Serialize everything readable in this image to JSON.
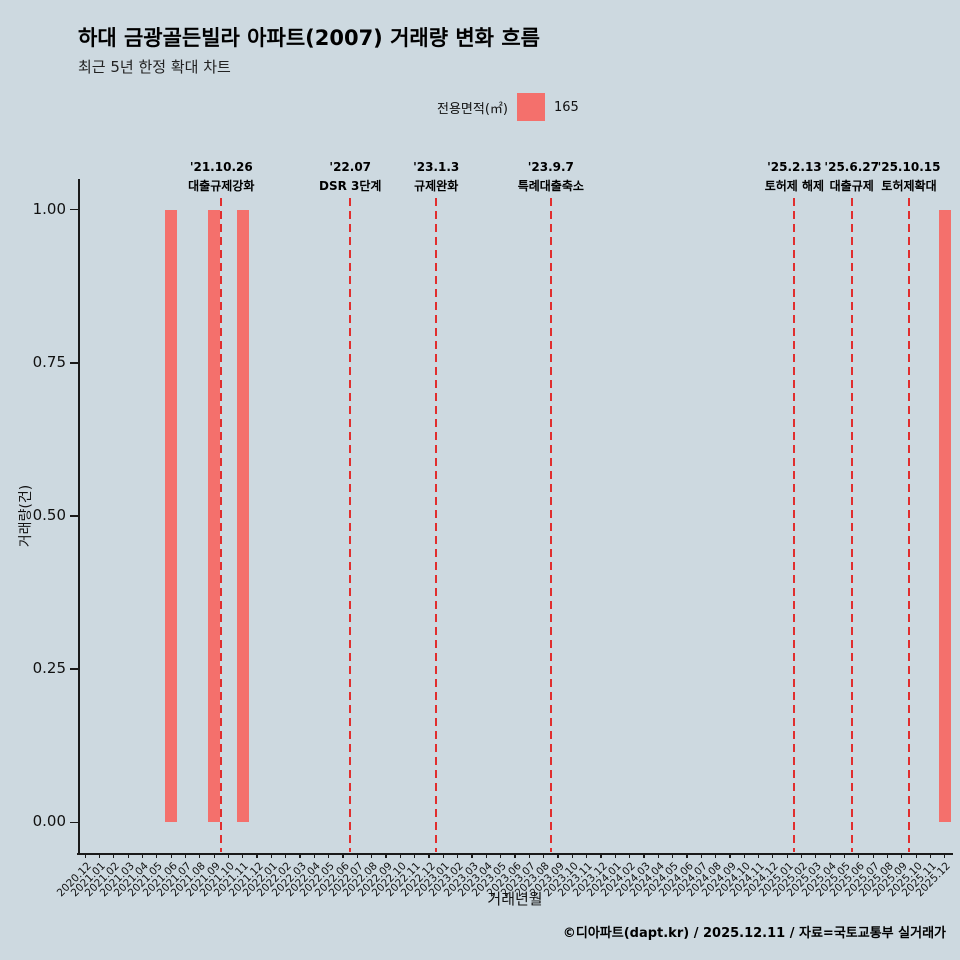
{
  "header": {
    "title": "하대 금광골든빌라 아파트(2007) 거래량 변화 흐름",
    "subtitle": "최근 5년 한정 확대 차트"
  },
  "legend": {
    "label": "전용면적(㎡)",
    "value": "165"
  },
  "footer": {
    "credit": "©디아파트(dapt.kr) / 2025.12.11 / 자료=국토교통부 실거래가"
  },
  "colors": {
    "background": "#cdd9e0",
    "bar": "#f4706c",
    "annotation_line": "#e12e2e",
    "axis": "#1a1a1a"
  },
  "chart_data": {
    "type": "bar",
    "title": "하대 금광골든빌라 아파트(2007) 거래량 변화 흐름",
    "subtitle": "최근 5년 한정 확대 차트",
    "xlabel": "거래년월",
    "ylabel": "거래량(건)",
    "ylim": [
      -0.05,
      1.05
    ],
    "yticks": [
      0,
      0.25,
      0.5,
      0.75,
      1
    ],
    "ytick_labels": [
      "0.00",
      "0.25",
      "0.50",
      "0.75",
      "1.00"
    ],
    "grid": false,
    "legend_position": "top-center",
    "series_name": "165",
    "categories": [
      "2020.12",
      "2021.01",
      "2021.02",
      "2021.03",
      "2021.04",
      "2021.05",
      "2021.06",
      "2021.07",
      "2021.08",
      "2021.09",
      "2021.10",
      "2021.11",
      "2021.12",
      "2022.01",
      "2022.02",
      "2022.03",
      "2022.04",
      "2022.05",
      "2022.06",
      "2022.07",
      "2022.08",
      "2022.09",
      "2022.10",
      "2022.11",
      "2022.12",
      "2023.01",
      "2023.02",
      "2023.03",
      "2023.04",
      "2023.05",
      "2023.06",
      "2023.07",
      "2023.08",
      "2023.09",
      "2023.10",
      "2023.11",
      "2023.12",
      "2024.01",
      "2024.02",
      "2024.03",
      "2024.04",
      "2024.05",
      "2024.06",
      "2024.07",
      "2024.08",
      "2024.09",
      "2024.10",
      "2024.11",
      "2024.12",
      "2025.01",
      "2025.02",
      "2025.03",
      "2025.04",
      "2025.05",
      "2025.06",
      "2025.07",
      "2025.08",
      "2025.09",
      "2025.10",
      "2025.11",
      "2025.12"
    ],
    "values": [
      0,
      0,
      0,
      0,
      0,
      0,
      1,
      0,
      0,
      1,
      0,
      1,
      0,
      0,
      0,
      0,
      0,
      0,
      0,
      0,
      0,
      0,
      0,
      0,
      0,
      0,
      0,
      0,
      0,
      0,
      0,
      0,
      0,
      0,
      0,
      0,
      0,
      0,
      0,
      0,
      0,
      0,
      0,
      0,
      0,
      0,
      0,
      0,
      0,
      0,
      0,
      0,
      0,
      0,
      0,
      0,
      0,
      0,
      0,
      0,
      1
    ],
    "annotations": [
      {
        "month": "2021.10",
        "date": "'21.10.26",
        "label": "대출규제강화"
      },
      {
        "month": "2022.07",
        "date": "'22.07",
        "label": "DSR 3단계"
      },
      {
        "month": "2023.01",
        "date": "'23.1.3",
        "label": "규제완화"
      },
      {
        "month": "2023.09",
        "date": "'23.9.7",
        "label": "특례대출축소"
      },
      {
        "month": "2025.02",
        "date": "'25.2.13",
        "label": "토허제 해제"
      },
      {
        "month": "2025.06",
        "date": "'25.6.27",
        "label": "대출규제"
      },
      {
        "month": "2025.10",
        "date": "'25.10.15",
        "label": "토허제확대"
      }
    ]
  }
}
